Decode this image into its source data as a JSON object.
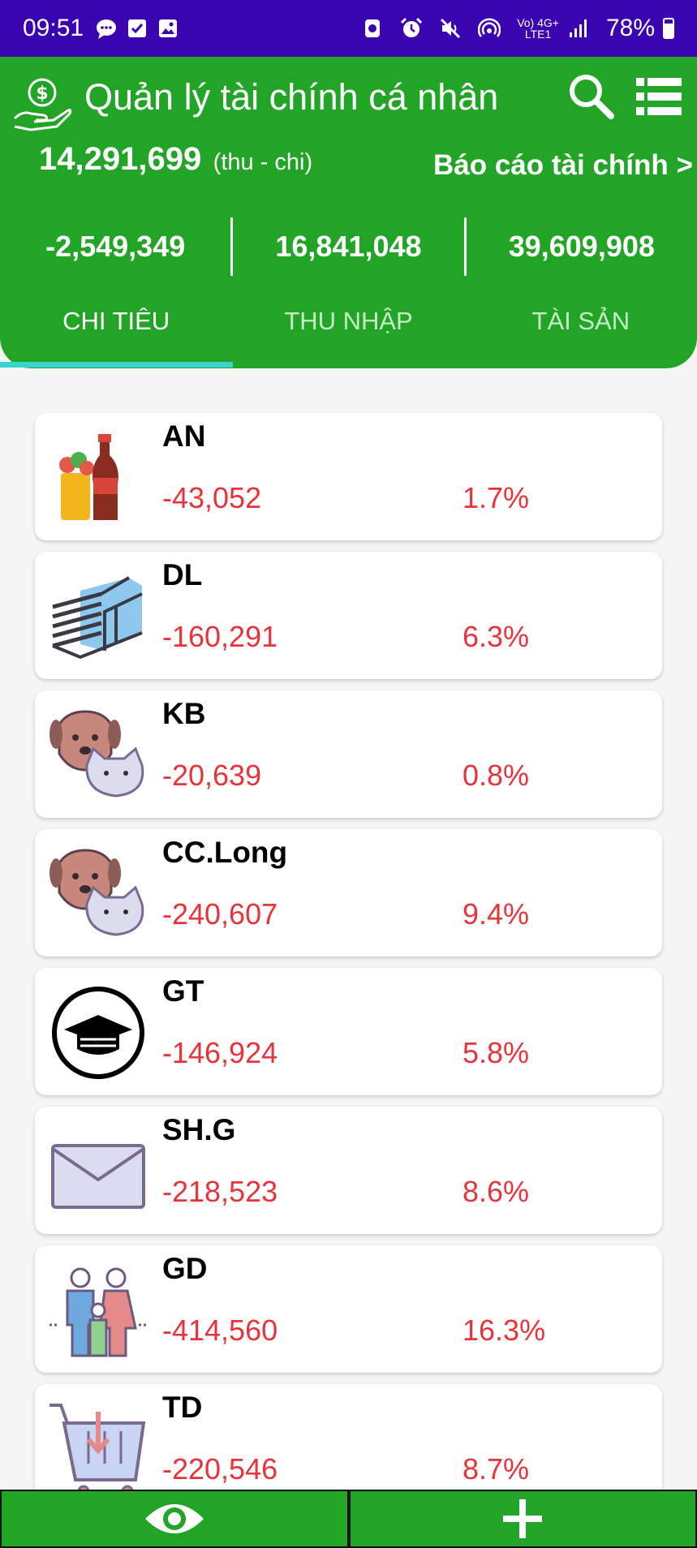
{
  "status_bar": {
    "time": "09:51",
    "network_label_top": "Vo) 4G+",
    "network_label_bottom": "LTE1",
    "battery": "78%"
  },
  "header": {
    "title": "Quản lý tài chính cá nhân",
    "balance": "14,291,699",
    "balance_note": "(thu - chi)",
    "report_link": "Báo cáo tài chính >",
    "stats": [
      "-2,549,349",
      "16,841,048",
      "39,609,908"
    ],
    "tabs": [
      {
        "label": "CHI TIÊU",
        "active": true
      },
      {
        "label": "THU NHẬP",
        "active": false
      },
      {
        "label": "TÀI SẢN",
        "active": false
      }
    ]
  },
  "categories": [
    {
      "name": "AN",
      "amount": "-43,052",
      "percent": "1.7%",
      "icon": "food-drink-icon"
    },
    {
      "name": "DL",
      "amount": "-160,291",
      "percent": "6.3%",
      "icon": "money-stack-icon"
    },
    {
      "name": "KB",
      "amount": "-20,639",
      "percent": "0.8%",
      "icon": "pets-icon"
    },
    {
      "name": "CC.Long",
      "amount": "-240,607",
      "percent": "9.4%",
      "icon": "pets-icon"
    },
    {
      "name": "GT",
      "amount": "-146,924",
      "percent": "5.8%",
      "icon": "graduation-cap-icon"
    },
    {
      "name": "SH.G",
      "amount": "-218,523",
      "percent": "8.6%",
      "icon": "envelope-icon"
    },
    {
      "name": "GD",
      "amount": "-414,560",
      "percent": "16.3%",
      "icon": "family-icon"
    },
    {
      "name": "TD",
      "amount": "-220,546",
      "percent": "8.7%",
      "icon": "shopping-basket-icon"
    }
  ],
  "colors": {
    "primary_green": "#22a526",
    "status_bar": "#3a04b0",
    "negative_red": "#e8333a",
    "tab_indicator": "#39d3d0"
  }
}
